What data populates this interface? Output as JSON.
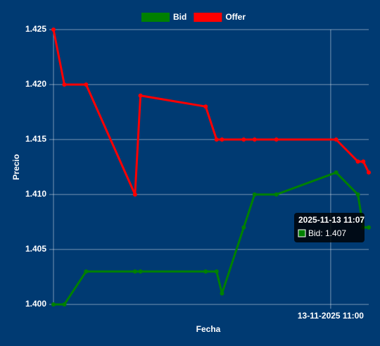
{
  "chart_data": {
    "type": "line",
    "x_label": "Fecha",
    "y_label": "Precio",
    "x": [
      "2025-11-13 10:09",
      "2025-11-13 10:11",
      "2025-11-13 10:15",
      "2025-11-13 10:24",
      "2025-11-13 10:25",
      "2025-11-13 10:37",
      "2025-11-13 10:39",
      "2025-11-13 10:40",
      "2025-11-13 10:44",
      "2025-11-13 10:46",
      "2025-11-13 10:50",
      "2025-11-13 11:01",
      "2025-11-13 11:05",
      "2025-11-13 11:06",
      "2025-11-13 11:07"
    ],
    "xlim": [
      "2025-11-13 10:09",
      "2025-11-13 11:07"
    ],
    "xticks": [
      {
        "value": "2025-11-13 11:00",
        "label": "13-11-2025 11:00"
      }
    ],
    "series": [
      {
        "name": "Bid",
        "color": "#008000",
        "values": [
          1.4,
          1.4,
          1.403,
          1.403,
          1.403,
          1.403,
          1.403,
          1.401,
          1.407,
          1.41,
          1.41,
          1.412,
          1.41,
          1.407,
          1.407
        ]
      },
      {
        "name": "Offer",
        "color": "#ff0000",
        "values": [
          1.425,
          1.42,
          1.42,
          1.41,
          1.419,
          1.418,
          1.415,
          1.415,
          1.415,
          1.415,
          1.415,
          1.415,
          1.413,
          1.413,
          1.412
        ]
      }
    ],
    "ylim": [
      1.4,
      1.425
    ],
    "yticks": [
      {
        "value": 1.4,
        "label": "1.400"
      },
      1.405,
      {
        "value": 1.41,
        "label": "1.410"
      },
      1.415,
      {
        "value": 1.42,
        "label": "1.420"
      },
      1.425
    ],
    "grid": true,
    "legend": "top",
    "tooltip": {
      "title": "2025-11-13 11:07",
      "label": "Bid: 1.407",
      "series": 0
    }
  }
}
